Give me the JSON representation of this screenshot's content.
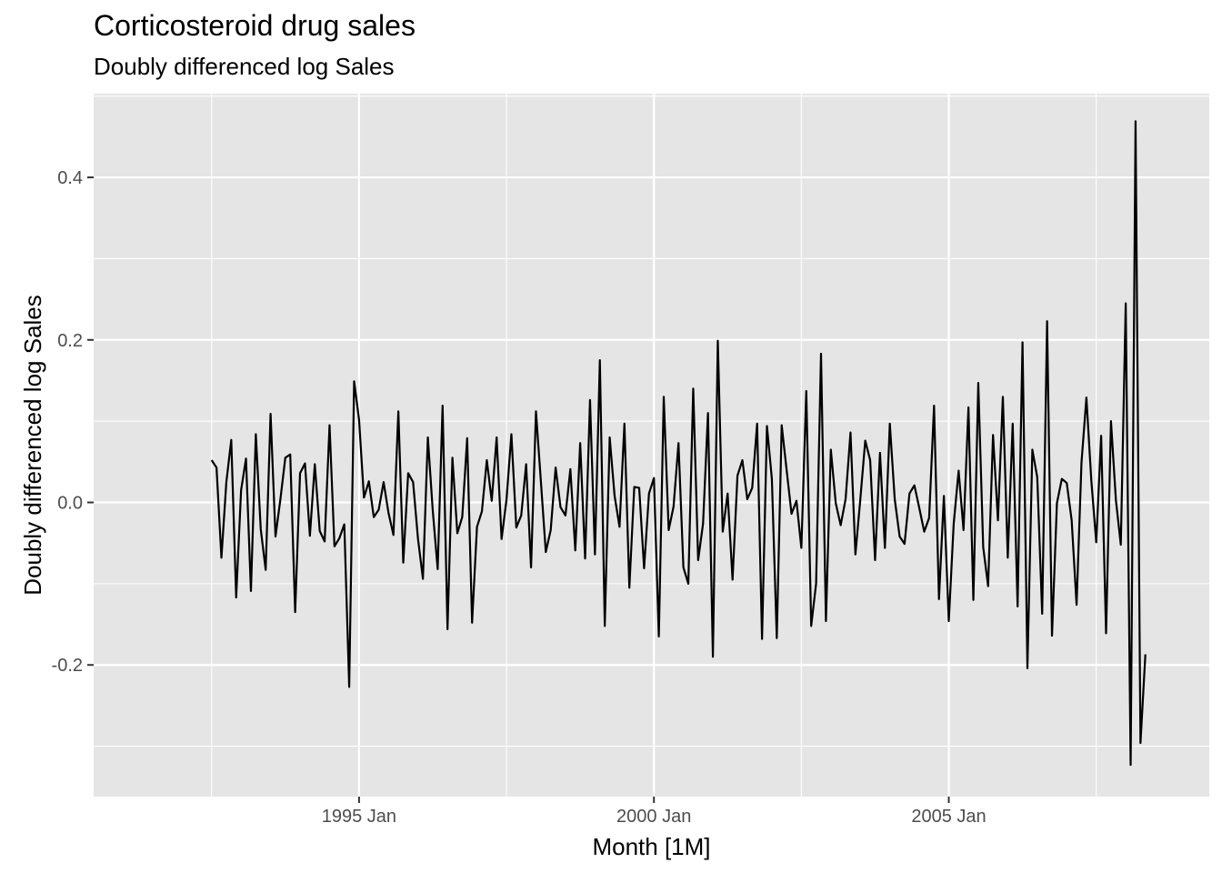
{
  "chart_data": {
    "type": "line",
    "title": "Corticosteroid drug sales",
    "subtitle": "Doubly differenced log Sales",
    "xlabel": "Month [1M]",
    "ylabel": "Doubly differenced log Sales",
    "x_start": "1992 Jul",
    "x_end": "2008 Jun",
    "x_ticks": [
      {
        "label": "1995 Jan",
        "month": "1995-01"
      },
      {
        "label": "2000 Jan",
        "month": "2000-01"
      },
      {
        "label": "2005 Jan",
        "month": "2005-01"
      }
    ],
    "y_ticks": [
      {
        "label": "-0.2",
        "value": -0.2
      },
      {
        "label": "0.0",
        "value": 0.0
      },
      {
        "label": "0.2",
        "value": 0.2
      },
      {
        "label": "0.4",
        "value": 0.4
      }
    ],
    "xlim": [
      "1990 Jul",
      "2009 Jun"
    ],
    "ylim": [
      -0.362,
      0.503
    ],
    "grid": true,
    "colors": {
      "panel": "#e5e5e5",
      "grid": "#ffffff",
      "line": "#000000",
      "tick_text": "#4d4d4d"
    },
    "series": [
      {
        "values": [
          0.052,
          0.043,
          -0.068,
          0.025,
          0.077,
          -0.117,
          0.015,
          0.054,
          -0.109,
          0.084,
          -0.033,
          -0.083,
          0.109,
          -0.042,
          0.004,
          0.055,
          0.059,
          -0.135,
          0.036,
          0.048,
          -0.041,
          0.047,
          -0.035,
          -0.048,
          0.095,
          -0.054,
          -0.044,
          -0.027,
          -0.227,
          0.149,
          0.102,
          0.006,
          0.026,
          -0.018,
          -0.009,
          0.025,
          -0.013,
          -0.04,
          0.112,
          -0.074,
          0.036,
          0.025,
          -0.045,
          -0.094,
          0.08,
          -0.01,
          -0.082,
          0.119,
          -0.156,
          0.055,
          -0.038,
          -0.018,
          0.079,
          -0.148,
          -0.03,
          -0.011,
          0.052,
          0.002,
          0.08,
          -0.045,
          0.003,
          0.084,
          -0.031,
          -0.016,
          0.047,
          -0.08,
          0.112,
          0.026,
          -0.061,
          -0.034,
          0.043,
          -0.006,
          -0.016,
          0.041,
          -0.059,
          0.073,
          -0.069,
          0.126,
          -0.064,
          0.175,
          -0.152,
          0.08,
          0.008,
          -0.03,
          0.097,
          -0.105,
          0.019,
          0.018,
          -0.081,
          0.011,
          0.03,
          -0.165,
          0.13,
          -0.034,
          -0.005,
          0.073,
          -0.08,
          -0.1,
          0.14,
          -0.071,
          -0.026,
          0.11,
          -0.19,
          0.199,
          -0.036,
          0.011,
          -0.095,
          0.033,
          0.052,
          0.004,
          0.018,
          0.097,
          -0.168,
          0.094,
          0.029,
          -0.167,
          0.095,
          0.04,
          -0.014,
          0.002,
          -0.056,
          0.137,
          -0.152,
          -0.1,
          0.183,
          -0.146,
          0.065,
          -0.001,
          -0.028,
          0.004,
          0.086,
          -0.064,
          0.004,
          0.076,
          0.052,
          -0.071,
          0.061,
          -0.056,
          0.097,
          0.004,
          -0.042,
          -0.051,
          0.011,
          0.021,
          -0.007,
          -0.036,
          -0.019,
          0.119,
          -0.119,
          0.008,
          -0.146,
          -0.026,
          0.039,
          -0.034,
          0.117,
          -0.12,
          0.147,
          -0.055,
          -0.103,
          0.083,
          -0.022,
          0.13,
          -0.068,
          0.097,
          -0.128,
          0.197,
          -0.204,
          0.065,
          0.031,
          -0.137,
          0.223,
          -0.164,
          -0.001,
          0.029,
          0.024,
          -0.022,
          -0.126,
          0.049,
          0.129,
          0.027,
          -0.049,
          0.082,
          -0.161,
          0.1,
          0.003,
          -0.052,
          0.245,
          -0.323,
          0.469,
          -0.296,
          -0.187
        ]
      }
    ]
  }
}
